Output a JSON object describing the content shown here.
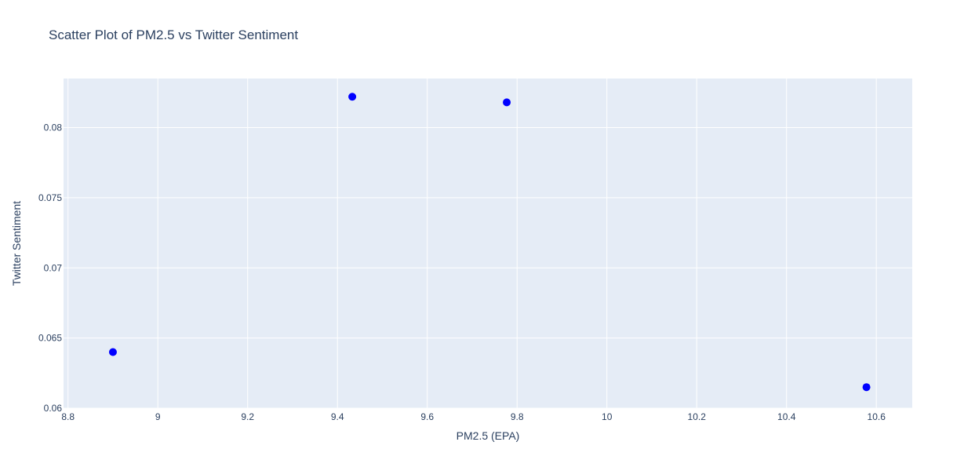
{
  "chart_data": {
    "type": "scatter",
    "title": "Scatter Plot of PM2.5 vs Twitter Sentiment",
    "xlabel": "PM2.5 (EPA)",
    "ylabel": "Twitter Sentiment",
    "xlim": [
      8.79,
      10.68
    ],
    "ylim": [
      0.06,
      0.0835
    ],
    "xticks": [
      8.8,
      9,
      9.2,
      9.4,
      9.6,
      9.8,
      10,
      10.2,
      10.4,
      10.6
    ],
    "xtick_labels": [
      "8.8",
      "9",
      "9.2",
      "9.4",
      "9.6",
      "9.8",
      "10",
      "10.2",
      "10.4",
      "10.6"
    ],
    "yticks": [
      0.06,
      0.065,
      0.07,
      0.075,
      0.08
    ],
    "ytick_labels": [
      "0.06",
      "0.065",
      "0.07",
      "0.075",
      "0.08"
    ],
    "grid": true,
    "points": [
      {
        "x": 8.9,
        "y": 0.064
      },
      {
        "x": 9.433,
        "y": 0.0822
      },
      {
        "x": 9.777,
        "y": 0.0818
      },
      {
        "x": 10.578,
        "y": 0.0615
      }
    ],
    "colors": {
      "plot_background": "#e5ecf6",
      "marker": "#0000ff",
      "text": "#2a3f5f"
    }
  }
}
